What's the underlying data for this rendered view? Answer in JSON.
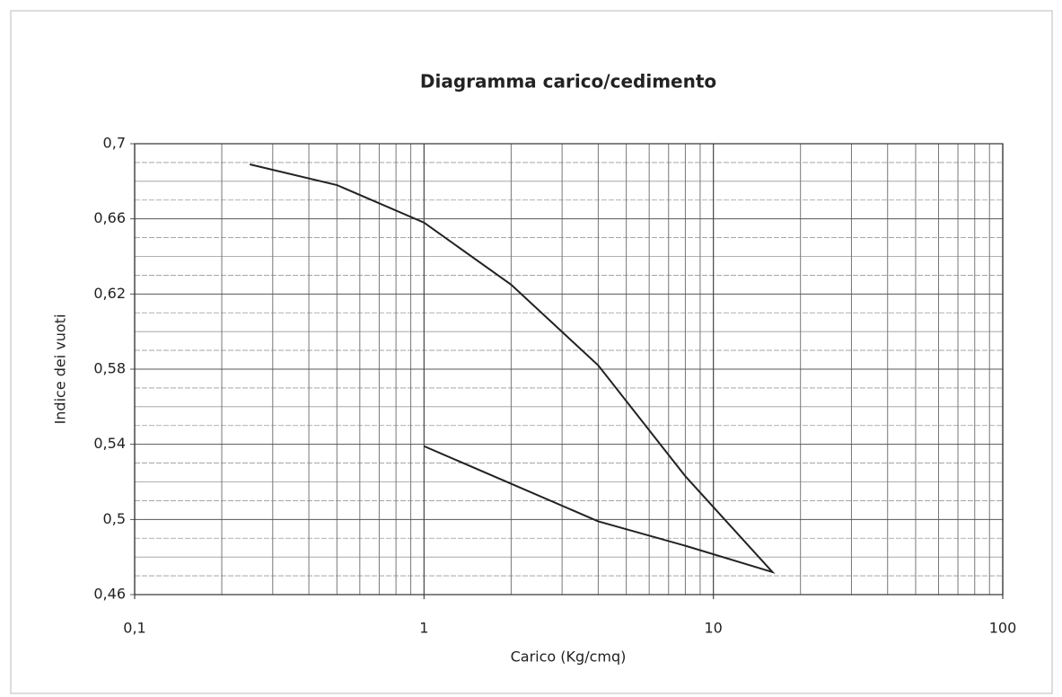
{
  "chart_data": {
    "type": "line",
    "title": "Diagramma carico/cedimento",
    "x_label": "Carico (Kg/cmq)",
    "y_label": "Indice dei vuoti",
    "x": [
      0.25,
      0.5,
      1,
      2,
      4,
      8,
      16,
      8,
      4,
      2,
      1
    ],
    "series": [
      {
        "name": "Indice dei vuoti",
        "color": "#222222",
        "values": [
          0.689,
          0.678,
          0.658,
          0.625,
          0.582,
          0.523,
          0.472,
          0.486,
          0.499,
          0.519,
          0.539
        ]
      }
    ],
    "x_log": true,
    "xlim": [
      0.1,
      100
    ],
    "xticks": [
      {
        "value": 0.1,
        "label": "0,1"
      },
      1,
      10,
      100
    ],
    "ylim": [
      0.46,
      0.7
    ],
    "yticks": [
      {
        "value": 0.46,
        "label": "0,46"
      },
      {
        "value": 0.5,
        "label": "0,5"
      },
      {
        "value": 0.54,
        "label": "0,54"
      },
      {
        "value": 0.58,
        "label": "0,58"
      },
      {
        "value": 0.62,
        "label": "0,62"
      },
      {
        "value": 0.66,
        "label": "0,66"
      },
      {
        "value": 0.7,
        "label": "0,7"
      }
    ],
    "grid": true
  }
}
